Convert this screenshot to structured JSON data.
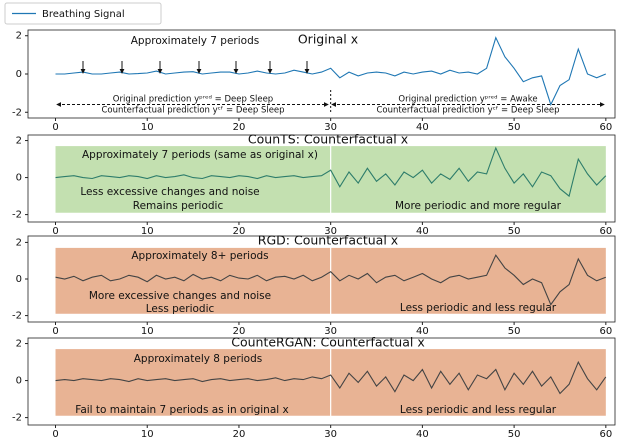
{
  "chart_data": [
    {
      "type": "line",
      "title": "Original x",
      "annotations": [
        "Approximately 7 periods",
        "Original prediction yᵖʳᵉᵈ = Deep Sleep",
        "Counterfactual prediction yᶜᶠ = Deep Sleep",
        "Original prediction yᵖʳᵉᵈ = Awake",
        "Counterfactual prediction yᶜᶠ = Deep Sleep"
      ],
      "x": [
        0,
        1,
        2,
        3,
        4,
        5,
        6,
        7,
        8,
        9,
        10,
        11,
        12,
        13,
        14,
        15,
        16,
        17,
        18,
        19,
        20,
        21,
        22,
        23,
        24,
        25,
        26,
        27,
        28,
        29,
        30,
        31,
        32,
        33,
        34,
        35,
        36,
        37,
        38,
        39,
        40,
        41,
        42,
        43,
        44,
        45,
        46,
        47,
        48,
        49,
        50,
        51,
        52,
        53,
        54,
        55,
        56,
        57,
        58,
        59,
        60
      ],
      "series": [
        {
          "name": "Breathing Signal",
          "color": "#1f77b4",
          "values": [
            0,
            0,
            0.05,
            0.1,
            0,
            0,
            0.05,
            0.1,
            0,
            0.02,
            0.05,
            0.15,
            0,
            0.05,
            0.1,
            0.12,
            0,
            0.05,
            0.1,
            0.1,
            0,
            0.05,
            0.15,
            0.05,
            0,
            0.05,
            0.2,
            0.1,
            0,
            0.1,
            0.3,
            -0.2,
            0.1,
            -0.1,
            0.05,
            0.1,
            0.05,
            -0.1,
            0.1,
            0,
            0.1,
            0.15,
            0,
            0.2,
            0.05,
            0.1,
            0,
            0.3,
            1.9,
            0.9,
            0.3,
            -0.4,
            -0.2,
            -0.1,
            -1.6,
            -0.6,
            -0.3,
            1.3,
            0,
            -0.2,
            0
          ]
        }
      ],
      "xlim": [
        -3,
        61
      ],
      "ylim": [
        -2.3,
        2.3
      ],
      "xticks": [
        0,
        10,
        20,
        30,
        40,
        50,
        60
      ],
      "yticks": [
        -2,
        0,
        2
      ],
      "legend": "upper left"
    },
    {
      "type": "line",
      "title": "CounTS: Counterfactual x",
      "annotations": [
        "Approximately 7 periods (same as original x)",
        "Less excessive changes and noise",
        "Remains periodic",
        "More periodic and more regular"
      ],
      "highlight": {
        "x": [
          0,
          60
        ],
        "y": [
          -1.9,
          1.7
        ],
        "color": "#c3e0b0"
      },
      "vline": 30,
      "x": [
        0,
        1,
        2,
        3,
        4,
        5,
        6,
        7,
        8,
        9,
        10,
        11,
        12,
        13,
        14,
        15,
        16,
        17,
        18,
        19,
        20,
        21,
        22,
        23,
        24,
        25,
        26,
        27,
        28,
        29,
        30,
        31,
        32,
        33,
        34,
        35,
        36,
        37,
        38,
        39,
        40,
        41,
        42,
        43,
        44,
        45,
        46,
        47,
        48,
        49,
        50,
        51,
        52,
        53,
        54,
        55,
        56,
        57,
        58,
        59,
        60
      ],
      "series": [
        {
          "color": "#2e7d6b",
          "values": [
            0,
            0.05,
            0.1,
            0,
            -0.05,
            0.1,
            0.05,
            0,
            0.1,
            0.05,
            -0.05,
            0.1,
            0,
            0.05,
            0.15,
            0,
            -0.05,
            0.1,
            0.05,
            0,
            0.1,
            0.05,
            -0.05,
            0.1,
            0,
            0.05,
            0.1,
            0,
            0.05,
            0.1,
            0.4,
            -0.5,
            0.3,
            -0.3,
            0.5,
            -0.2,
            0.2,
            -0.4,
            0.3,
            0,
            0.4,
            -0.3,
            0.2,
            -0.1,
            0.5,
            -0.2,
            0.3,
            0.2,
            1.6,
            0.5,
            -0.3,
            0.2,
            -0.5,
            0.3,
            0.1,
            -0.6,
            -1.0,
            1.0,
            0.2,
            -0.4,
            0.1
          ]
        }
      ],
      "xlim": [
        -3,
        61
      ],
      "ylim": [
        -2.4,
        2.3
      ],
      "xticks": [
        0,
        10,
        20,
        30,
        40,
        50,
        60
      ],
      "yticks": [
        -2,
        0,
        2
      ]
    },
    {
      "type": "line",
      "title": "RGD: Counterfactual x",
      "annotations": [
        "Approximately 8+ periods",
        "More excessive changes and noise",
        "Less periodic",
        "Less periodic and less regular"
      ],
      "highlight": {
        "x": [
          0,
          60
        ],
        "y": [
          -1.9,
          1.7
        ],
        "color": "#e8b394"
      },
      "vline": 30,
      "x": [
        0,
        1,
        2,
        3,
        4,
        5,
        6,
        7,
        8,
        9,
        10,
        11,
        12,
        13,
        14,
        15,
        16,
        17,
        18,
        19,
        20,
        21,
        22,
        23,
        24,
        25,
        26,
        27,
        28,
        29,
        30,
        31,
        32,
        33,
        34,
        35,
        36,
        37,
        38,
        39,
        40,
        41,
        42,
        43,
        44,
        45,
        46,
        47,
        48,
        49,
        50,
        51,
        52,
        53,
        54,
        55,
        56,
        57,
        58,
        59,
        60
      ],
      "series": [
        {
          "color": "#444444",
          "values": [
            0.1,
            0,
            0.15,
            -0.1,
            0.1,
            0.2,
            -0.1,
            0,
            0.2,
            0.1,
            -0.15,
            0.2,
            0,
            0.1,
            -0.1,
            0.25,
            0,
            0.1,
            -0.1,
            0.2,
            0.05,
            0,
            0.2,
            -0.1,
            0.1,
            0.15,
            0,
            0.2,
            -0.1,
            0.1,
            0.4,
            -0.1,
            0.2,
            0,
            0.3,
            -0.2,
            0.1,
            0.2,
            -0.1,
            0.1,
            0.3,
            0,
            -0.2,
            0.1,
            0.2,
            0,
            0.1,
            0.2,
            1.3,
            0.6,
            0.2,
            -0.3,
            0,
            -0.2,
            -1.4,
            -0.7,
            -0.3,
            1.1,
            0.2,
            -0.1,
            0.1
          ]
        }
      ],
      "xlim": [
        -3,
        61
      ],
      "ylim": [
        -2.35,
        2.35
      ],
      "xticks": [
        0,
        10,
        20,
        30,
        40,
        50,
        60
      ],
      "yticks": [
        -2,
        0,
        2
      ]
    },
    {
      "type": "line",
      "title": "CounteRGAN: Counterfactual x",
      "annotations": [
        "Approximately 8 periods",
        "Fail to maintain 7 periods as in original x",
        "Less periodic and less regular"
      ],
      "highlight": {
        "x": [
          0,
          60
        ],
        "y": [
          -1.9,
          1.7
        ],
        "color": "#e8b394"
      },
      "vline": 30,
      "x": [
        0,
        1,
        2,
        3,
        4,
        5,
        6,
        7,
        8,
        9,
        10,
        11,
        12,
        13,
        14,
        15,
        16,
        17,
        18,
        19,
        20,
        21,
        22,
        23,
        24,
        25,
        26,
        27,
        28,
        29,
        30,
        31,
        32,
        33,
        34,
        35,
        36,
        37,
        38,
        39,
        40,
        41,
        42,
        43,
        44,
        45,
        46,
        47,
        48,
        49,
        50,
        51,
        52,
        53,
        54,
        55,
        56,
        57,
        58,
        59,
        60
      ],
      "series": [
        {
          "color": "#444444",
          "values": [
            0,
            0.05,
            0,
            0.1,
            0.05,
            0,
            0.1,
            0.05,
            -0.05,
            0.1,
            0,
            0.05,
            0.1,
            0,
            0.05,
            0.1,
            -0.05,
            0.05,
            0.1,
            0,
            0.05,
            0.1,
            0,
            0.05,
            0.15,
            0,
            0.1,
            0.05,
            0.2,
            0.1,
            0.3,
            -0.4,
            0.4,
            -0.1,
            0.5,
            -0.3,
            0.2,
            -0.6,
            0.3,
            0,
            0.6,
            -0.4,
            0.5,
            -0.2,
            0.4,
            -0.5,
            0.3,
            0.1,
            0.6,
            -0.5,
            0.4,
            -0.2,
            0.5,
            -0.3,
            0.2,
            -0.7,
            -0.2,
            1.0,
            0.1,
            -0.5,
            0.2
          ]
        }
      ],
      "xlim": [
        -3,
        61
      ],
      "ylim": [
        -2.4,
        2.3
      ],
      "xticks": [
        0,
        10,
        20,
        30,
        40,
        50,
        60
      ],
      "yticks": [
        -2,
        0,
        2
      ]
    }
  ]
}
